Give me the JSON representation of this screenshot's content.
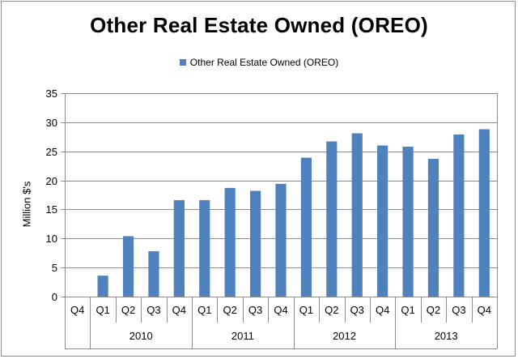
{
  "chart_data": {
    "type": "bar",
    "title": "Other Real Estate Owned (OREO)",
    "ylabel": "Million $'s",
    "xlabel": "",
    "ylim": [
      0,
      35
    ],
    "yticks": [
      0,
      5,
      10,
      15,
      20,
      25,
      30,
      35
    ],
    "grid": true,
    "legend_position": "top-center",
    "color": "#4f81bd",
    "categories": [
      "Q4",
      "Q1",
      "Q2",
      "Q3",
      "Q4",
      "Q1",
      "Q2",
      "Q3",
      "Q4",
      "Q1",
      "Q2",
      "Q3",
      "Q4",
      "Q1",
      "Q2",
      "Q3",
      "Q4"
    ],
    "year_groups": [
      {
        "label": "",
        "count": 1
      },
      {
        "label": "2010",
        "count": 4
      },
      {
        "label": "2011",
        "count": 4
      },
      {
        "label": "2012",
        "count": 4
      },
      {
        "label": "2013",
        "count": 4
      }
    ],
    "series": [
      {
        "name": "Other Real Estate  Owned (OREO)",
        "values": [
          0,
          3.6,
          10.4,
          7.8,
          16.6,
          16.6,
          18.7,
          18.2,
          19.4,
          23.9,
          26.7,
          28.1,
          26.0,
          25.8,
          23.7,
          27.9,
          28.8
        ]
      }
    ]
  }
}
